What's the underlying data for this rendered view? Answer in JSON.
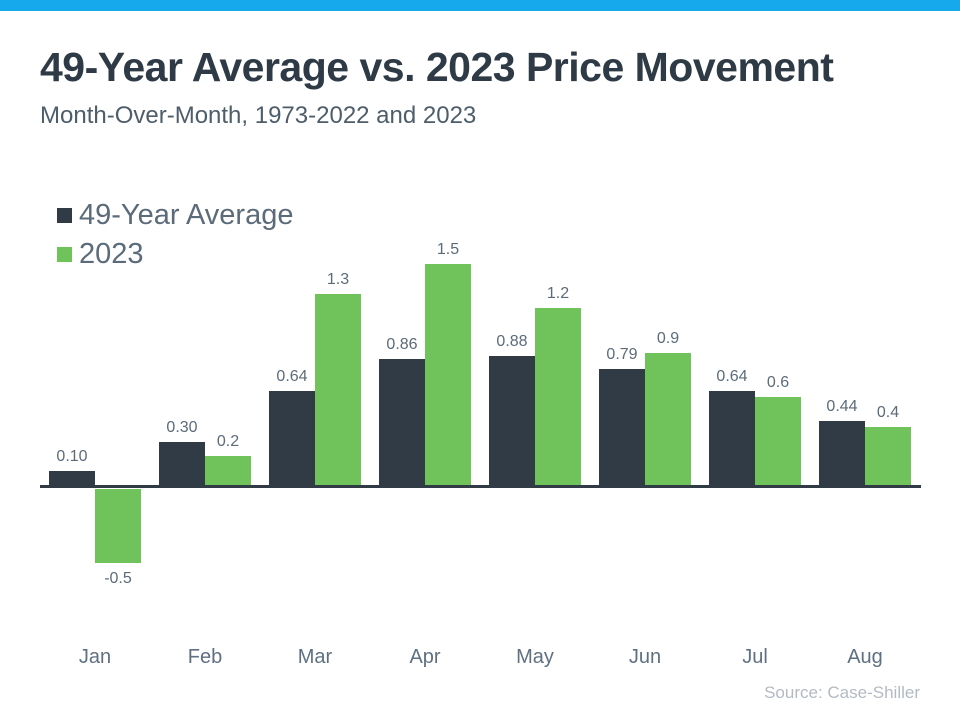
{
  "window": {
    "accent_color": "#16a9ec",
    "background_color": "#ffffff"
  },
  "header": {
    "title": "49-Year Average vs. 2023 Price Movement",
    "subtitle": "Month-Over-Month, 1973-2022 and 2023"
  },
  "legend": {
    "items": [
      {
        "label": "49-Year Average",
        "color": "#313b45"
      },
      {
        "label": "2023",
        "color": "#70c25a"
      }
    ]
  },
  "footer": {
    "source": "Source: Case-Shiller"
  },
  "chart_data": {
    "type": "bar",
    "title": "49-Year Average vs. 2023 Price Movement",
    "subtitle": "Month-Over-Month, 1973-2022 and 2023",
    "categories": [
      "Jan",
      "Feb",
      "Mar",
      "Apr",
      "May",
      "Jun",
      "Jul",
      "Aug"
    ],
    "series": [
      {
        "name": "49-Year Average",
        "color": "#313b45",
        "values": [
          0.1,
          0.3,
          0.64,
          0.86,
          0.88,
          0.79,
          0.64,
          0.44
        ],
        "labels": [
          "0.10",
          "0.30",
          "0.64",
          "0.86",
          "0.88",
          "0.79",
          "0.64",
          "0.44"
        ]
      },
      {
        "name": "2023",
        "color": "#70c25a",
        "values": [
          -0.5,
          0.2,
          1.3,
          1.5,
          1.2,
          0.9,
          0.6,
          0.4
        ],
        "labels": [
          "-0.5",
          "0.2",
          "1.3",
          "1.5",
          "1.2",
          "0.9",
          "0.6",
          "0.4"
        ]
      }
    ],
    "ylim": [
      -0.75,
      1.65
    ],
    "xlabel": "",
    "ylabel": "",
    "grid": false,
    "value_labels": true,
    "legend_position": "top-left",
    "source": "Source: Case-Shiller"
  }
}
